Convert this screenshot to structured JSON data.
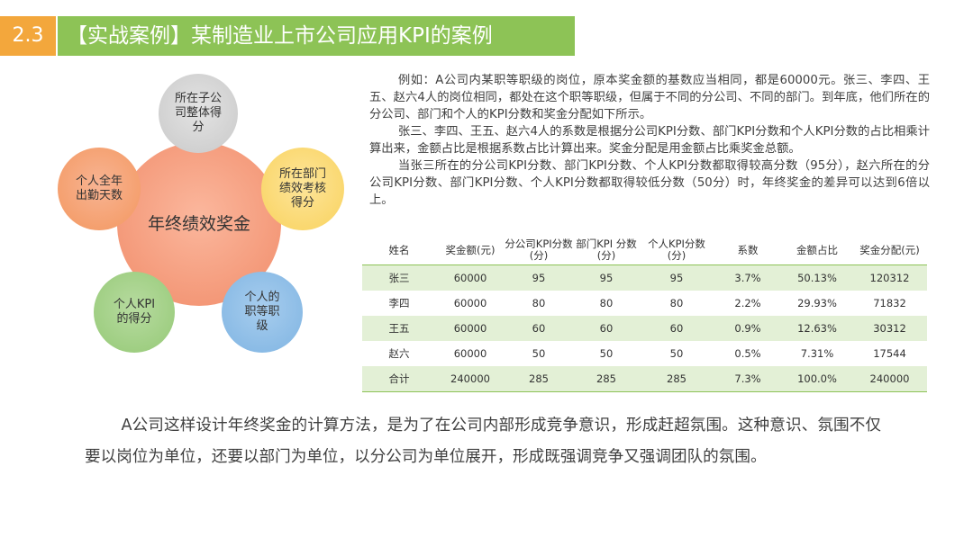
{
  "header": {
    "section_number": "2.3",
    "title": "【实战案例】某制造业上市公司应用KPI的案例"
  },
  "diagram": {
    "center": "年终绩效奖金",
    "factors": [
      "所在子公司整体得分",
      "所在部门绩效考核得分",
      "个人全年出勤天数",
      "个人KPI的得分",
      "个人的职等职级"
    ]
  },
  "description": {
    "paragraphs": [
      "例如：A公司内某职等职级的岗位，原本奖金额的基数应当相同，都是60000元。张三、李四、王五、赵六4人的岗位相同，都处在这个职等职级，但属于不同的分公司、不同的部门。到年底，他们所在的分公司、部门和个人的KPI分数和奖金分配如下所示。",
      "张三、李四、王五、赵六4人的系数是根据分公司KPI分数、部门KPI分数和个人KPI分数的占比相乘计算出来，金额占比是根据系数占比计算出来。奖金分配是用金额占比乘奖金总额。",
      "当张三所在的分公司KPI分数、部门KPI分数、个人KPI分数都取得较高分数（95分），赵六所在的分公司KPI分数、部门KPI分数、个人KPI分数都取得较低分数（50分）时，年终奖金的差异可以达到6倍以上。"
    ]
  },
  "table": {
    "headers": [
      "姓名",
      "奖金额(元)",
      "分公司KPI分数(分)",
      "部门KPI 分数(分)",
      "个人KPI分数(分)",
      "系数",
      "金额占比",
      "奖金分配(元)"
    ],
    "rows": [
      [
        "张三",
        "60000",
        "95",
        "95",
        "95",
        "3.7%",
        "50.13%",
        "120312"
      ],
      [
        "李四",
        "60000",
        "80",
        "80",
        "80",
        "2.2%",
        "29.93%",
        "71832"
      ],
      [
        "王五",
        "60000",
        "60",
        "60",
        "60",
        "0.9%",
        "12.63%",
        "30312"
      ],
      [
        "赵六",
        "60000",
        "50",
        "50",
        "50",
        "0.5%",
        "7.31%",
        "17544"
      ],
      [
        "合计",
        "240000",
        "285",
        "285",
        "285",
        "7.3%",
        "100.0%",
        "240000"
      ]
    ]
  },
  "conclusion": "A公司这样设计年终奖金的计算方法，是为了在公司内部形成竞争意识，形成赶超氛围。这种意识、氛围不仅要以岗位为单位，还要以部门为单位，以分公司为单位展开，形成既强调竞争又强调团队的氛围。",
  "colors": {
    "section_number_bg": "#f3a73c",
    "title_bg": "#8dc356",
    "table_stripe": "#e3f0d6",
    "center_bubble": "#f49979"
  }
}
